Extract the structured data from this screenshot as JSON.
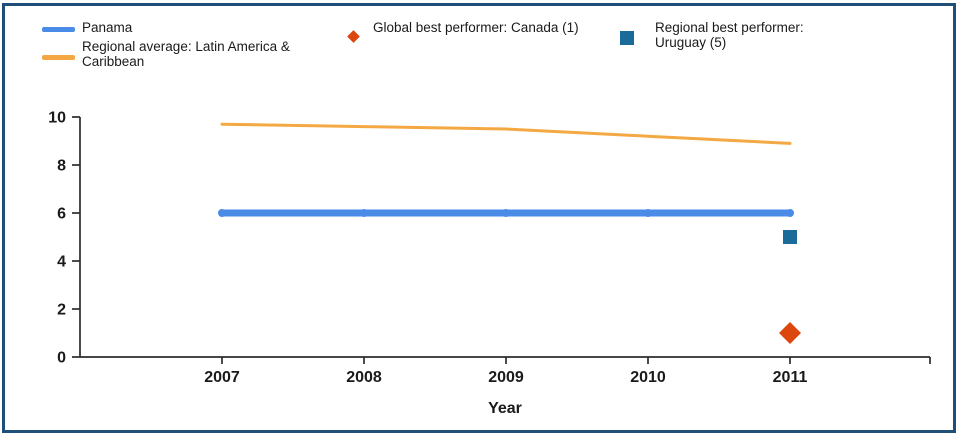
{
  "figure": {
    "border_color": "#1f4e79",
    "background": "#ffffff",
    "axis_color": "#2b2b2b",
    "text_color": "#1a1a1a"
  },
  "legend": {
    "items": [
      {
        "label": "Panama",
        "marker": "line",
        "color": "#4a8be8"
      },
      {
        "label": "Regional average: Latin America & Caribbean",
        "marker": "line",
        "color": "#f4a844"
      },
      {
        "label": "Global best performer: Canada (1)",
        "marker": "diamond",
        "color": "#dc470e"
      },
      {
        "label": "Regional best performer: Uruguay (5)",
        "marker": "square",
        "color": "#1a6b99"
      }
    ]
  },
  "chart_data": {
    "type": "line",
    "x": [
      2007,
      2008,
      2009,
      2010,
      2011
    ],
    "series": [
      {
        "name": "Panama",
        "values": [
          6,
          6,
          6,
          6,
          6
        ],
        "color": "#4a8be8",
        "style": "thick"
      },
      {
        "name": "Regional average: Latin America & Caribbean",
        "values": [
          9.7,
          9.6,
          9.5,
          9.2,
          8.9
        ],
        "color": "#f4a844",
        "style": "thin"
      }
    ],
    "points": [
      {
        "name": "Global best performer: Canada (1)",
        "x": 2011,
        "y": 1,
        "marker": "diamond",
        "color": "#dc470e"
      },
      {
        "name": "Regional best performer: Uruguay (5)",
        "x": 2011,
        "y": 5,
        "marker": "square",
        "color": "#1a6b99"
      }
    ],
    "xlabel": "Year",
    "ylabel": "",
    "ylim": [
      0,
      10
    ],
    "yticks": [
      0,
      2,
      4,
      6,
      8,
      10
    ],
    "xticks": [
      2007,
      2008,
      2009,
      2010,
      2011
    ],
    "grid": false,
    "legend_position": "top"
  }
}
